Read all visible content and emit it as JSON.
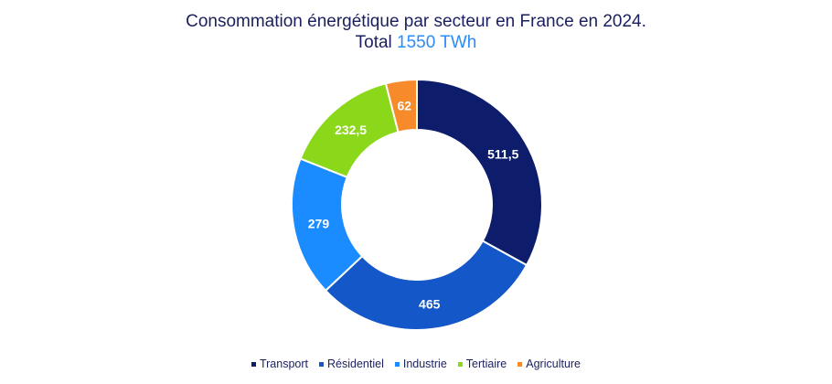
{
  "chart_data": {
    "type": "pie",
    "variant": "donut",
    "title": "Consommation énergétique par secteur en France en 2024.",
    "subtitle_prefix": "Total",
    "subtitle_value": "1550 TWh",
    "categories": [
      "Transport",
      "Résidentiel",
      "Industrie",
      "Tertiaire",
      "Agriculture"
    ],
    "values": [
      511.5,
      465,
      279,
      232.5,
      62
    ],
    "labels": [
      "511,5",
      "465",
      "279",
      "232,5",
      "62"
    ],
    "colors": [
      "#0d1d6b",
      "#1457c9",
      "#1b8cff",
      "#8bd71a",
      "#f78a2b"
    ],
    "legend": "bottom"
  }
}
